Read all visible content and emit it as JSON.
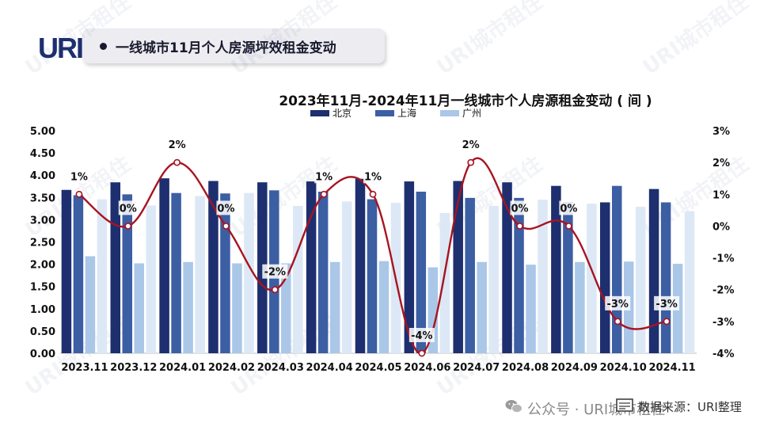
{
  "logo_text": "URI",
  "header": {
    "title": "一线城市11月个人房源坪效租金变动"
  },
  "footer": {
    "wechat_text": "公众号 · URI城市租住",
    "source_text": "数据来源：URI整理"
  },
  "watermark_text": "URI城市租住",
  "colors": {
    "beijing": "#1d2f6f",
    "shanghai": "#3c5ea3",
    "guangzhou_bar": "#aac7e8",
    "guangzhou_pale": "#dce8f5",
    "line": "#a81320"
  },
  "chart_data": {
    "type": "bar",
    "title": "2023年11月-2024年11月一线城市个人房源租金变动 ( 间 )",
    "legend_position": "top",
    "categories": [
      "2023.11",
      "2023.12",
      "2024.01",
      "2024.02",
      "2024.03",
      "2024.04",
      "2024.05",
      "2024.06",
      "2024.07",
      "2024.08",
      "2024.09",
      "2024.10",
      "2024.11"
    ],
    "series": [
      {
        "name": "北京",
        "values": [
          3.67,
          3.84,
          3.93,
          3.87,
          3.84,
          3.86,
          3.92,
          3.86,
          3.87,
          3.84,
          3.76,
          3.39,
          3.69
        ]
      },
      {
        "name": "上海",
        "values": [
          3.55,
          3.57,
          3.6,
          3.59,
          3.66,
          3.63,
          3.46,
          3.63,
          3.49,
          3.49,
          3.4,
          3.76,
          3.39
        ]
      },
      {
        "name": "广州",
        "values": [
          2.18,
          2.02,
          2.05,
          2.02,
          2.02,
          2.05,
          2.07,
          1.93,
          2.05,
          1.99,
          2.05,
          2.06,
          2.01
        ]
      },
      {
        "name": "",
        "values": [
          3.46,
          3.32,
          3.53,
          3.6,
          3.31,
          3.41,
          3.38,
          3.15,
          3.31,
          3.45,
          3.36,
          3.29,
          3.19
        ]
      }
    ],
    "change_line": {
      "values": [
        1,
        0,
        2,
        0,
        -2,
        1,
        1,
        -4,
        2,
        0,
        0,
        -3,
        -3
      ],
      "labels": [
        "1%",
        "0%",
        "2%",
        "0%",
        "-2%",
        "1%",
        "1%",
        "-4%",
        "2%",
        "0%",
        "0%",
        "-3%",
        "-3%"
      ]
    },
    "y_left": {
      "min": 0,
      "max": 5,
      "step": 0.5,
      "ticks": [
        "0.00",
        "0.50",
        "1.00",
        "1.50",
        "2.00",
        "2.50",
        "3.00",
        "3.50",
        "4.00",
        "4.50",
        "5.00"
      ]
    },
    "y_right": {
      "min": -4,
      "max": 3,
      "step": 1,
      "ticks": [
        "-4%",
        "-3%",
        "-2%",
        "-1%",
        "0%",
        "1%",
        "2%",
        "3%"
      ]
    }
  }
}
